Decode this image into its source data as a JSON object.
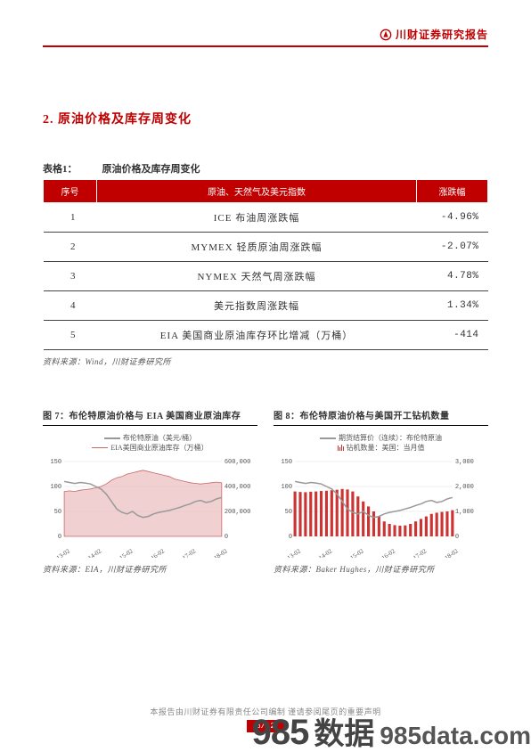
{
  "header": {
    "brand_text": "川财证券研究报告",
    "icon_color": "#c00000"
  },
  "section": {
    "heading": "2. 原油价格及库存周变化"
  },
  "table1": {
    "caption_prefix": "表格1：",
    "caption_title": "原油价格及库存周变化",
    "columns": {
      "idx": "序号",
      "name": "原油、天然气及美元指数",
      "chg": "涨跌幅"
    },
    "rows": [
      {
        "idx": "1",
        "name": "ICE 布油周涨跌幅",
        "chg": "-4.96%"
      },
      {
        "idx": "2",
        "name": "MYMEX 轻质原油周涨跌幅",
        "chg": "-2.07%"
      },
      {
        "idx": "3",
        "name": "NYMEX 天然气周涨跌幅",
        "chg": "4.78%"
      },
      {
        "idx": "4",
        "name": "美元指数周涨跌幅",
        "chg": "1.34%"
      },
      {
        "idx": "5",
        "name": "EIA 美国商业原油库存环比增减（万桶）",
        "chg": "-414"
      }
    ],
    "source": "资料来源：Wind，川财证券研究所"
  },
  "chart7": {
    "title": "图 7：布伦特原油价格与 EIA 美国商业原油库存",
    "legend": {
      "s1": "布伦特原油（美元/桶）",
      "s2": "EIA美国商业原油库存（万桶）"
    },
    "colors": {
      "line": "#999999",
      "area_fill": "#e6b0b0",
      "area_stroke": "#cc6666",
      "grid": "#e0e0e0"
    },
    "y_left": {
      "ticks": [
        "0",
        "50",
        "100",
        "150"
      ]
    },
    "y_right": {
      "ticks": [
        "0",
        "200,000",
        "400,000",
        "600,000"
      ]
    },
    "x_labels": [
      "13-02",
      "14-02",
      "15-02",
      "16-02",
      "17-02",
      "18-02"
    ],
    "series_line": [
      110,
      108,
      106,
      108,
      107,
      105,
      100,
      95,
      85,
      70,
      55,
      48,
      45,
      50,
      42,
      38,
      40,
      45,
      48,
      50,
      52,
      55,
      58,
      62,
      65,
      70,
      72,
      68,
      70,
      75,
      78
    ],
    "series_area": [
      360000,
      365000,
      360000,
      370000,
      375000,
      380000,
      390000,
      400000,
      420000,
      450000,
      470000,
      480000,
      500000,
      510000,
      520000,
      530000,
      520000,
      510000,
      500000,
      490000,
      480000,
      460000,
      450000,
      440000,
      430000,
      425000,
      420000,
      425000,
      430000,
      435000,
      430000
    ],
    "left_max": 150,
    "right_max": 600000,
    "source": "资料来源：EIA，川财证券研究所"
  },
  "chart8": {
    "title": "图 8：布伦特原油价格与美国开工钻机数量",
    "legend": {
      "s1": "期货结算价（连续）：布伦特原油",
      "s2": "钻机数量：美国：当月值"
    },
    "colors": {
      "line": "#999999",
      "bars": "#cc3333",
      "grid": "#e0e0e0"
    },
    "y_left": {
      "ticks": [
        "0",
        "50",
        "100",
        "150"
      ]
    },
    "y_right": {
      "ticks": [
        "0",
        "1,000",
        "2,000",
        "3,000"
      ]
    },
    "x_labels": [
      "13-02",
      "14-02",
      "15-02",
      "16-02",
      "17-02",
      "18-02"
    ],
    "series_line": [
      110,
      108,
      106,
      108,
      107,
      105,
      100,
      95,
      85,
      70,
      55,
      48,
      45,
      50,
      42,
      38,
      40,
      45,
      48,
      50,
      52,
      55,
      58,
      62,
      65,
      70,
      72,
      68,
      70,
      75,
      78
    ],
    "series_bars": [
      1800,
      1780,
      1770,
      1790,
      1800,
      1820,
      1830,
      1850,
      1870,
      1900,
      1880,
      1800,
      1600,
      1400,
      1200,
      1000,
      800,
      600,
      500,
      450,
      430,
      440,
      500,
      600,
      700,
      800,
      900,
      950,
      980,
      1000,
      1050
    ],
    "left_max": 150,
    "right_max": 3000,
    "source": "资料来源：Baker Hughes，川财证券研究所"
  },
  "footer": {
    "note": "本报告由川财证券有限责任公司编制  谨请参阅尾页的重要声明",
    "page": "6/12"
  },
  "watermark": {
    "big": "985",
    "cn": "数据",
    "small": "985data.com"
  }
}
